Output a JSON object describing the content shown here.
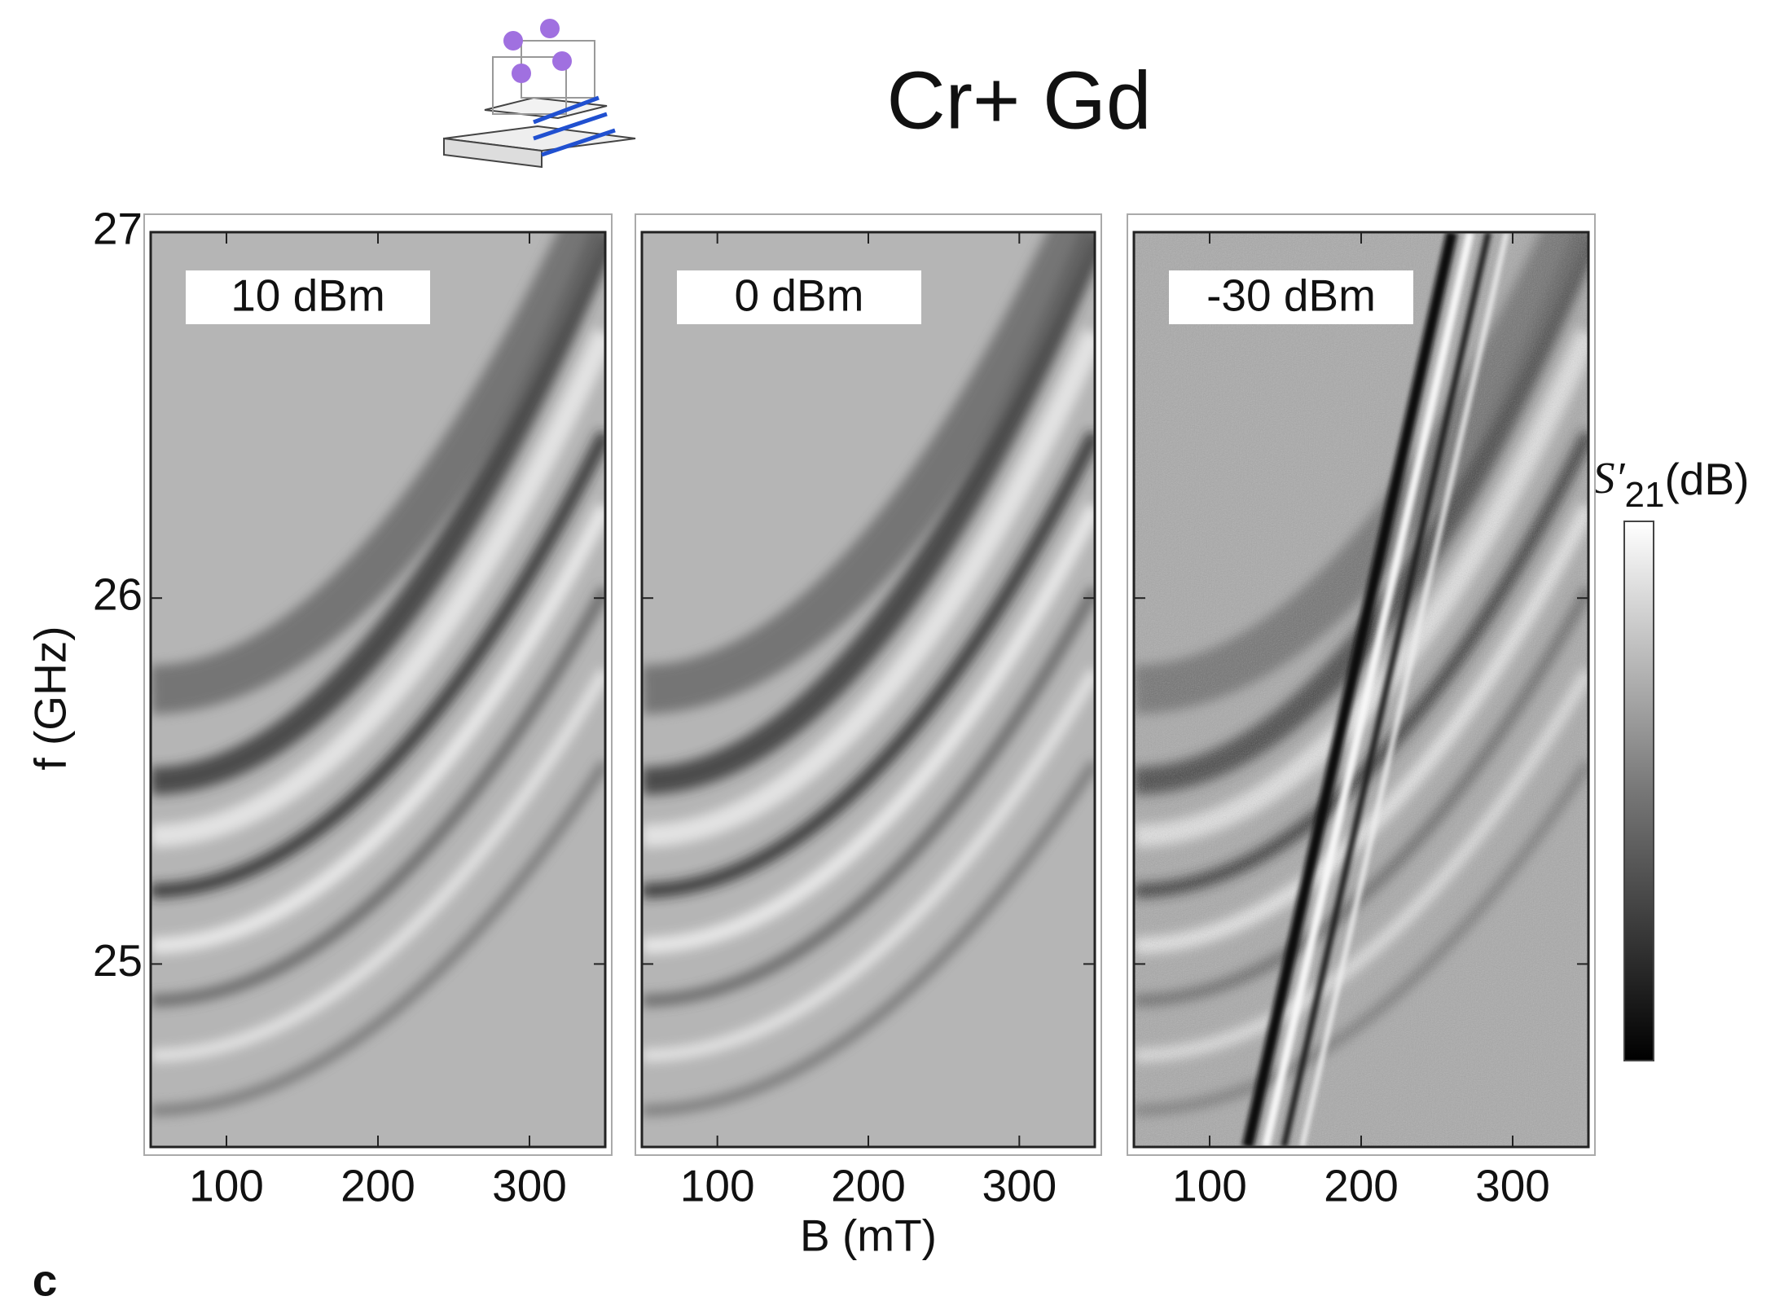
{
  "title": "Cr+ Gd",
  "panel_label": "c",
  "colorbar": {
    "symbol": "S′",
    "subscript": "21",
    "unit": "(dB)"
  },
  "chart_data": [
    {
      "type": "heatmap",
      "label": "10 dBm",
      "xlim": [
        50,
        350
      ],
      "xticks": [
        100,
        200,
        300
      ],
      "ylim": [
        24.5,
        27
      ],
      "yticks": [
        25,
        26,
        27
      ],
      "ylabel": "f (GHz)"
    },
    {
      "type": "heatmap",
      "label": "0 dBm",
      "xlim": [
        50,
        350
      ],
      "xticks": [
        100,
        200,
        300
      ],
      "xlabel": "B (mT)"
    },
    {
      "type": "heatmap",
      "label": "-30 dBm",
      "xlim": [
        50,
        350
      ],
      "xticks": [
        100,
        200,
        300
      ]
    }
  ]
}
